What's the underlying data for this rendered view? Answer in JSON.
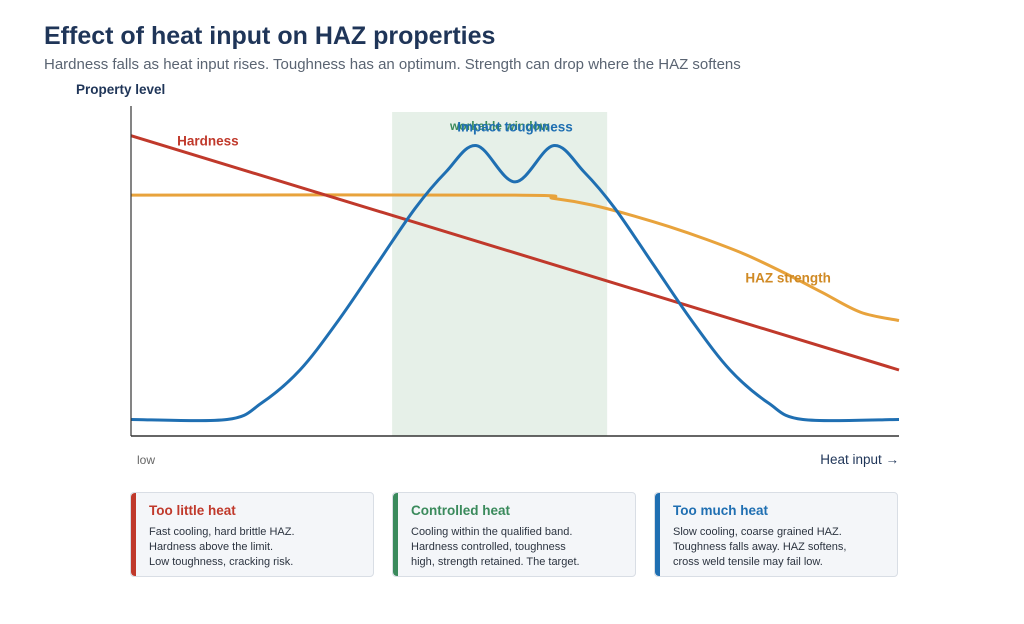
{
  "header": {
    "title": "Effect of heat input on HAZ properties",
    "subtitle": "Hardness falls as heat input rises. Toughness has an optimum. Strength can drop where the HAZ softens"
  },
  "chart_data": {
    "type": "line",
    "ylabel": "Property level",
    "x_tick_left": "low",
    "xlabel": "Heat input →",
    "xlim": [
      0,
      100
    ],
    "ylim": [
      0,
      100
    ],
    "grid": false,
    "window": {
      "label": "workable window",
      "x_range": [
        34,
        62
      ]
    },
    "series": [
      {
        "name": "Hardness",
        "color": "#c0392b",
        "x": [
          0,
          100
        ],
        "y": [
          91,
          20
        ]
      },
      {
        "name": "HAZ strength",
        "color": "#e8a33c",
        "x": [
          0,
          50,
          55,
          60,
          65,
          70,
          75,
          80,
          85,
          90,
          95,
          100
        ],
        "y": [
          73,
          73,
          72,
          70,
          67,
          63.5,
          59.5,
          55,
          49.5,
          43.5,
          37.5,
          35
        ]
      },
      {
        "name": "Impact toughness",
        "color": "#1f6fb2",
        "x": [
          0,
          12.5,
          17,
          22,
          27,
          32,
          37,
          41,
          45,
          50,
          55,
          59,
          63,
          68,
          73,
          78,
          83,
          87.5,
          100
        ],
        "y": [
          5,
          5,
          10,
          20,
          35,
          52,
          69,
          80,
          88,
          77,
          88,
          80,
          69,
          52,
          35,
          20,
          10,
          5,
          5
        ]
      }
    ]
  },
  "cards": [
    {
      "title": "Too little heat",
      "color": "#c0392b",
      "lines": [
        "Fast cooling, hard brittle HAZ.",
        "Hardness above the limit.",
        "Low toughness, cracking risk."
      ]
    },
    {
      "title": "Controlled heat",
      "color": "#3a8a5c",
      "lines": [
        "Cooling within the qualified band.",
        "Hardness controlled, toughness",
        "high, strength retained. The target."
      ]
    },
    {
      "title": "Too much heat",
      "color": "#1f6fb2",
      "lines": [
        "Slow cooling, coarse grained HAZ.",
        "Toughness falls away. HAZ softens,",
        "cross weld tensile may fail low."
      ]
    }
  ]
}
